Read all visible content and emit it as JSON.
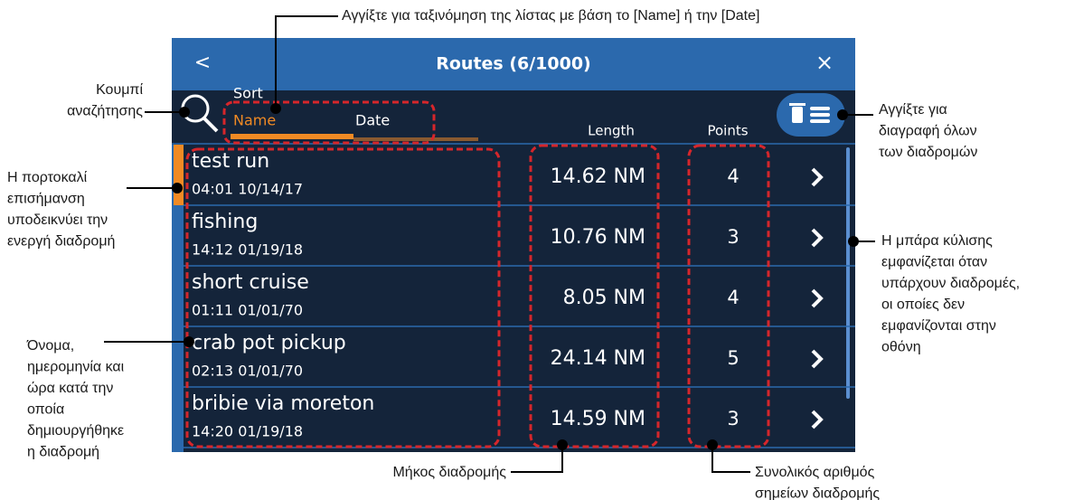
{
  "screen": {
    "title": "Routes (6/1000)",
    "back": "<",
    "close": "×",
    "sort_label": "Sort",
    "sort_options": [
      "Name",
      "Date"
    ],
    "columns": [
      "Length",
      "Points"
    ],
    "rows": [
      {
        "name": "test run",
        "date": "04:01 10/14/17",
        "length": "14.62 NM",
        "points": "4"
      },
      {
        "name": "fishing",
        "date": "14:12 01/19/18",
        "length": "10.76 NM",
        "points": "3"
      },
      {
        "name": "short cruise",
        "date": "01:11 01/01/70",
        "length": "8.05 NM",
        "points": "4"
      },
      {
        "name": "crab pot pickup",
        "date": "02:13 01/01/70",
        "length": "24.14 NM",
        "points": "5"
      },
      {
        "name": "bribie via moreton",
        "date": "14:20 01/19/18",
        "length": "14.59 NM",
        "points": "3"
      }
    ]
  },
  "annotations": {
    "sort": [
      "Αγγίξτε για ταξινόμηση της λίστας με βάση το [Name] ή την [Date]"
    ],
    "search": [
      "Κουμπί",
      "αναζήτησης"
    ],
    "active": [
      "Η πορτοκαλί",
      "επισήμανση",
      "υποδεικνύει την",
      "ενεργή διαδρομή"
    ],
    "name": [
      "Όνομα,",
      "ημερομηνία και",
      "ώρα κατά την",
      "οποία",
      "δημιουργήθηκε",
      "η διαδρομή"
    ],
    "delete": [
      "Αγγίξτε για",
      "διαγραφή όλων",
      "των διαδρομών"
    ],
    "scroll": [
      "Η μπάρα κύλισης",
      "εμφανίζεται όταν",
      "υπάρχουν διαδρομές,",
      "οι οποίες δεν",
      "εμφανίζονται στην",
      "οθόνη"
    ],
    "length": [
      "Μήκος διαδρομής"
    ],
    "points": [
      "Συνολικός αριθμός",
      "σημείων διαδρομής"
    ]
  }
}
